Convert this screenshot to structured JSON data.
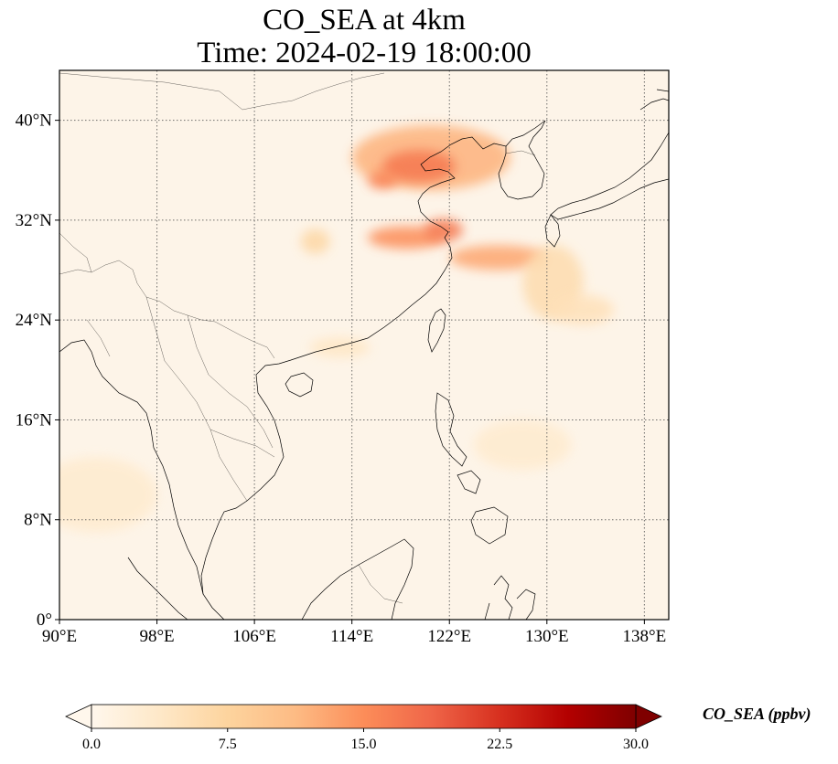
{
  "title": "CO_SEA at 4km",
  "subtitle": "Time: 2024-02-19 18:00:00",
  "map": {
    "lon_range": [
      90,
      140
    ],
    "lat_range": [
      0,
      44
    ],
    "lon_ticks": [
      {
        "value": 90,
        "label": "90°E"
      },
      {
        "value": 98,
        "label": "98°E"
      },
      {
        "value": 106,
        "label": "106°E"
      },
      {
        "value": 114,
        "label": "114°E"
      },
      {
        "value": 122,
        "label": "122°E"
      },
      {
        "value": 130,
        "label": "130°E"
      },
      {
        "value": 138,
        "label": "138°E"
      }
    ],
    "lat_ticks": [
      {
        "value": 0,
        "label": "0°"
      },
      {
        "value": 8,
        "label": "8°N"
      },
      {
        "value": 16,
        "label": "16°N"
      },
      {
        "value": 24,
        "label": "24°N"
      },
      {
        "value": 32,
        "label": "32°N"
      },
      {
        "value": 40,
        "label": "40°N"
      }
    ],
    "gridlines": true,
    "background_color": "#fdf4e8",
    "plumes": [
      {
        "lon": 120.5,
        "lat": 37.0,
        "rx": 6.5,
        "ry": 2.6,
        "value": 12
      },
      {
        "lon": 119.5,
        "lat": 36.3,
        "rx": 3.0,
        "ry": 1.3,
        "value": 17
      },
      {
        "lon": 116.5,
        "lat": 35.2,
        "rx": 1.2,
        "ry": 0.7,
        "value": 16
      },
      {
        "lon": 118.5,
        "lat": 30.6,
        "rx": 3.2,
        "ry": 0.9,
        "value": 15
      },
      {
        "lon": 121.5,
        "lat": 31.2,
        "rx": 1.6,
        "ry": 0.9,
        "value": 17
      },
      {
        "lon": 126.0,
        "lat": 29.0,
        "rx": 4.0,
        "ry": 1.0,
        "value": 13
      },
      {
        "lon": 111.0,
        "lat": 30.3,
        "rx": 1.2,
        "ry": 1.0,
        "value": 7
      },
      {
        "lon": 130.5,
        "lat": 27.0,
        "rx": 2.5,
        "ry": 3.0,
        "value": 6
      },
      {
        "lon": 133.0,
        "lat": 24.8,
        "rx": 2.5,
        "ry": 1.2,
        "value": 5
      },
      {
        "lon": 113.0,
        "lat": 21.8,
        "rx": 2.5,
        "ry": 0.8,
        "value": 4
      },
      {
        "lon": 93.0,
        "lat": 10.0,
        "rx": 5.0,
        "ry": 3.0,
        "value": 3
      },
      {
        "lon": 128.0,
        "lat": 14.0,
        "rx": 4.0,
        "ry": 2.0,
        "value": 3
      }
    ]
  },
  "colorbar": {
    "label": "CO_SEA (ppbv)",
    "min": 0,
    "max": 30,
    "ticks": [
      "0.0",
      "7.5",
      "15.0",
      "22.5",
      "30.0"
    ],
    "extend": "both",
    "colormap": "OrRd",
    "colors": [
      "#fff7ec",
      "#fee8c8",
      "#fdd49e",
      "#fdbb84",
      "#fc8d59",
      "#ef6548",
      "#d7301f",
      "#b30000",
      "#7f0000"
    ]
  }
}
